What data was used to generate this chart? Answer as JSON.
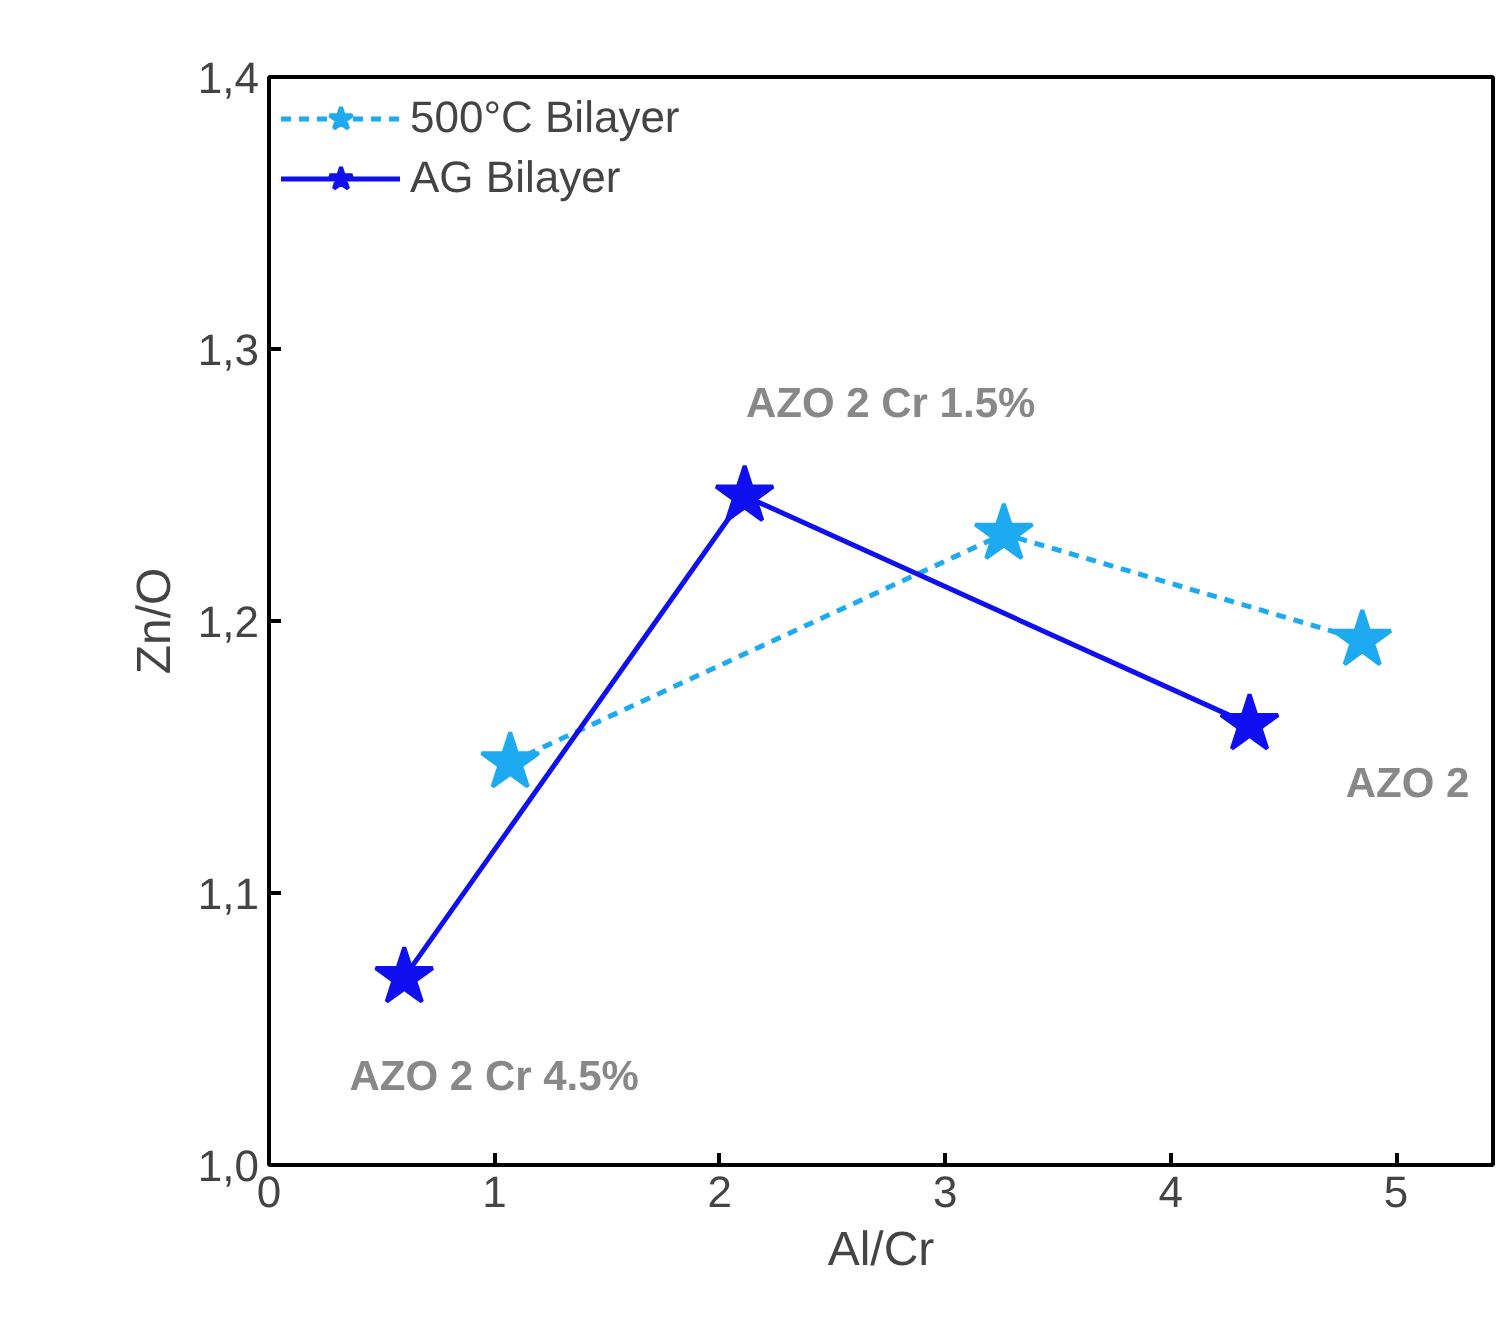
{
  "chart_data": {
    "type": "line",
    "xlabel": "Al/Cr",
    "ylabel": "Zn/O",
    "xlim": [
      0,
      5.43
    ],
    "ylim": [
      1.0,
      1.4
    ],
    "xticks": [
      0,
      1,
      2,
      3,
      4,
      5
    ],
    "yticks": [
      {
        "value": 1.0,
        "label": "1,0"
      },
      {
        "value": 1.1,
        "label": "1,1"
      },
      {
        "value": 1.2,
        "label": "1,2"
      },
      {
        "value": 1.3,
        "label": "1,3"
      },
      {
        "value": 1.4,
        "label": "1,4"
      }
    ],
    "series": [
      {
        "name": "500°C Bilayer",
        "color": "#1eaaf1",
        "line_style": "dashed",
        "x": [
          1.07,
          3.26,
          4.85
        ],
        "values": [
          1.148,
          1.232,
          1.193
        ]
      },
      {
        "name": "AG Bilayer",
        "color": "#0f0ff0",
        "line_style": "solid",
        "x": [
          0.6,
          2.11,
          4.35
        ],
        "values": [
          1.069,
          1.246,
          1.162
        ]
      }
    ],
    "marker": "star",
    "grid": false,
    "legend": "top left",
    "annotations": [
      {
        "text": "AZO 2 Cr 1.5%",
        "x": 2.11,
        "y": 1.246
      },
      {
        "text": "AZO 2",
        "x": 4.35,
        "y": 1.162
      },
      {
        "text": "AZO 2 Cr 4.5%",
        "x": 0.6,
        "y": 1.069
      }
    ]
  }
}
